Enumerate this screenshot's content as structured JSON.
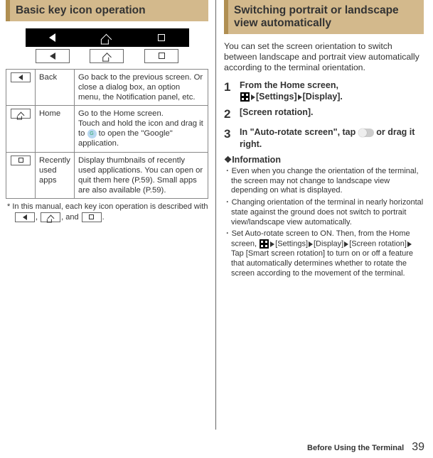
{
  "left": {
    "header": "Basic key icon operation",
    "table": [
      {
        "name": "Back",
        "desc": "Go back to the previous screen. Or close a dialog box, an option menu, the Notification panel, etc."
      },
      {
        "name": "Home",
        "desc_pre": "Go to the Home screen.\nTouch and hold the icon and drag it to ",
        "desc_post": " to open the \"Google\" application."
      },
      {
        "name": "Recently used apps",
        "desc": "Display thumbnails of recently used applications. You can open or quit them here (P.59). Small apps are also available (P.59)."
      }
    ],
    "note_pre": "* In this manual, each key icon operation is described with ",
    "note_sep": ", ",
    "note_and": ", and ",
    "note_post": "."
  },
  "right": {
    "header": "Switching portrait or landscape view automatically",
    "intro": "You can set the screen orientation to switch between landscape and portrait view automatically according to the terminal orientation.",
    "steps": [
      {
        "n": "1",
        "pre": "From the Home screen, ",
        "seq1": "[Settings]",
        "seq2": "[Display]."
      },
      {
        "n": "2",
        "text": "[Screen rotation]."
      },
      {
        "n": "3",
        "pre": "In \"Auto-rotate screen\", tap ",
        "post": " or drag it right."
      }
    ],
    "info_head": "❖Information",
    "bullets": [
      "Even when you change the orientation of the terminal, the screen may not change to landscape view depending on what is displayed.",
      "Changing orientation of the terminal in nearly horizontal state against the ground does not switch to portrait view/landscape view automatically."
    ],
    "bullet3_pre": "Set Auto-rotate screen to ON. Then, from the Home screen, ",
    "bullet3_seq": [
      "[Settings]",
      "[Display]",
      "[Screen rotation]"
    ],
    "bullet3_post1": "Tap [Smart screen rotation] to turn on or off a feature that automatically determines whether to rotate the screen according to the movement of the terminal."
  },
  "footer": {
    "section": "Before Using the Terminal",
    "page": "39"
  }
}
